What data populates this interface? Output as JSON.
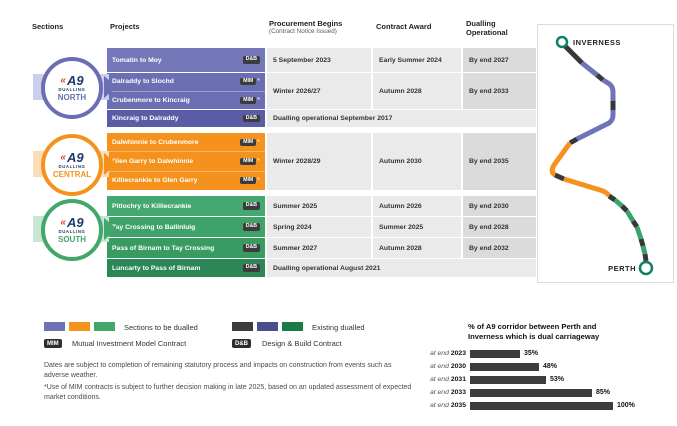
{
  "table": {
    "header": {
      "sections": "Sections",
      "projects": "Projects",
      "procurement_line1": "Procurement Begins",
      "procurement_line2": "(Contract Notice Issued)",
      "contract_award": "Contract Award",
      "dualling_line1": "Dualling",
      "dualling_line2": "Operational"
    },
    "north": {
      "logo": {
        "chevron": "«",
        "a9": "A9",
        "dualling": "DUALLING",
        "name": "NORTH"
      },
      "color": "#6b6eb2",
      "rows": {
        "tomatin": {
          "name": "Tomatin to Moy",
          "contract": "D&B",
          "procurement": "5 September 2023",
          "award": "Early Summer 2024",
          "dualling": "By end 2027"
        },
        "mim": {
          "project1": "Dalraddy to Slochd",
          "project2": "Crubenmore to Kincraig",
          "contract": "MIM",
          "star": "*",
          "procurement": "Winter 2026/27",
          "award": "Autumn 2028",
          "dualling": "By end 2033"
        },
        "kincraig": {
          "name": "Kincraig to Dalraddy",
          "contract": "D&B",
          "note": "Dualling operational September 2017"
        }
      }
    },
    "central": {
      "logo": {
        "chevron": "«",
        "a9": "A9",
        "dualling": "DUALLING",
        "name": "CENTRAL"
      },
      "color": "#f5921e",
      "row": {
        "project1": "Dalwhinnie to Crubenmore",
        "project2": "Glen Garry to Dalwhinnie",
        "project3": "Killiecrankie to Glen Garry",
        "contract": "MIM",
        "star": "*",
        "procurement": "Winter 2028/29",
        "award": "Autumn 2030",
        "dualling": "By end 2035"
      }
    },
    "south": {
      "logo": {
        "chevron": "«",
        "a9": "A9",
        "dualling": "DUALLING",
        "name": "SOUTH"
      },
      "color": "#41a76c",
      "rows": [
        {
          "name": "Pitlochry to Killiecrankie",
          "contract": "D&B",
          "procurement": "Summer 2025",
          "award": "Autumn 2026",
          "dualling": "By end 2030"
        },
        {
          "name": "Tay Crossing to Ballinluig",
          "contract": "D&B",
          "procurement": "Spring 2024",
          "award": "Summer 2025",
          "dualling": "By end 2028"
        },
        {
          "name": "Pass of Birnam to Tay Crossing",
          "contract": "D&B",
          "procurement": "Summer 2027",
          "award": "Autumn 2028",
          "dualling": "By end 2032"
        }
      ],
      "luncarty": {
        "name": "Luncarty to Pass of Birnam",
        "contract": "D&B",
        "note": "Dualling operational August 2021"
      }
    }
  },
  "map": {
    "top_city": "INVERNESS",
    "bottom_city": "PERTH",
    "colors": {
      "north": "#6f74b8",
      "central": "#f5921e",
      "south": "#3aa468",
      "existing": "#383838",
      "city_ring": "#0f7f68"
    }
  },
  "legend": {
    "to_be_dualled_label": "Sections to be dualled",
    "to_be_dualled_colors": [
      "#6f71b5",
      "#f5921e",
      "#41a76c"
    ],
    "existing_label": "Existing dualled",
    "existing_colors": [
      "#3c3c3c",
      "#4b4d8c",
      "#1d7a49"
    ],
    "mim_badge": "MIM",
    "mim_label": "Mutual Investment Model Contract",
    "dab_badge": "D&B",
    "dab_label": "Design & Build Contract"
  },
  "footnotes": {
    "line1": "Dates are subject to completion of remaining statutory process and impacts on construction from events such as adverse weather.",
    "line2": "*Use of MIM contracts is subject to further decision making in late 2025, based on an updated assessment of expected market conditions."
  },
  "chart_data": {
    "type": "bar",
    "orientation": "horizontal",
    "title": "% of A9 corridor between Perth and Inverness which is dual carriageway",
    "title_line1": "% of A9 corridor between Perth and",
    "title_line2": "Inverness which is dual carriageway",
    "categories": [
      "at end 2023",
      "at end 2030",
      "at end 2031",
      "at end 2033",
      "at end 2035"
    ],
    "values": [
      35,
      48,
      53,
      85,
      100
    ],
    "xlim": [
      0,
      100
    ],
    "bar_color": "#3d3d3d",
    "legend_position": "none",
    "grid": false,
    "rows": [
      {
        "prefix": "at end",
        "year": "2023",
        "value": 35,
        "label": "35%"
      },
      {
        "prefix": "at end",
        "year": "2030",
        "value": 48,
        "label": "48%"
      },
      {
        "prefix": "at end",
        "year": "2031",
        "value": 53,
        "label": "53%"
      },
      {
        "prefix": "at end",
        "year": "2033",
        "value": 85,
        "label": "85%"
      },
      {
        "prefix": "at end",
        "year": "2035",
        "value": 100,
        "label": "100%"
      }
    ]
  }
}
